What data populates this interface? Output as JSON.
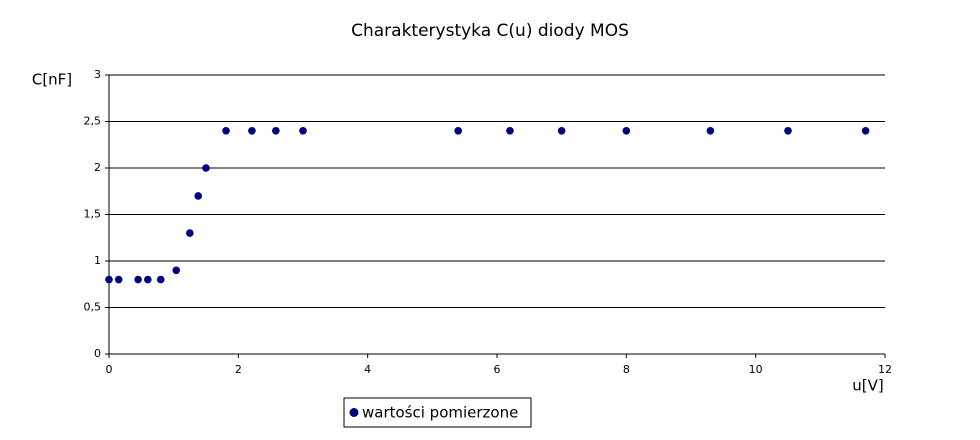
{
  "chart_data": {
    "type": "scatter",
    "title": "Charakterystyka C(u) diody MOS",
    "y_label": "C[nF]",
    "x_label": "u[V]",
    "series": [
      {
        "name": "wartości pomierzone",
        "color": "#000080",
        "x": [
          0,
          0.15,
          0.45,
          0.6,
          0.8,
          1.04,
          1.25,
          1.38,
          1.5,
          1.81,
          2.21,
          2.58,
          3.0,
          5.4,
          6.2,
          7.0,
          8.0,
          9.3,
          10.5,
          11.7
        ],
        "values": [
          0.8,
          0.8,
          0.8,
          0.8,
          0.8,
          0.9,
          1.3,
          1.7,
          2.0,
          2.4,
          2.4,
          2.4,
          2.4,
          2.4,
          2.4,
          2.4,
          2.4,
          2.4,
          2.4,
          2.4
        ]
      }
    ],
    "xlim": [
      0,
      12
    ],
    "xticks": [
      0,
      2,
      4,
      6,
      8,
      10,
      12
    ],
    "ylim": [
      0,
      3
    ],
    "yticks": [
      0,
      {
        "value": 0.5,
        "label": "0,5"
      },
      1,
      {
        "value": 1.5,
        "label": "1,5"
      },
      2,
      {
        "value": 2.5,
        "label": "2,5"
      },
      3
    ],
    "grid": true,
    "legend": "bottom"
  }
}
